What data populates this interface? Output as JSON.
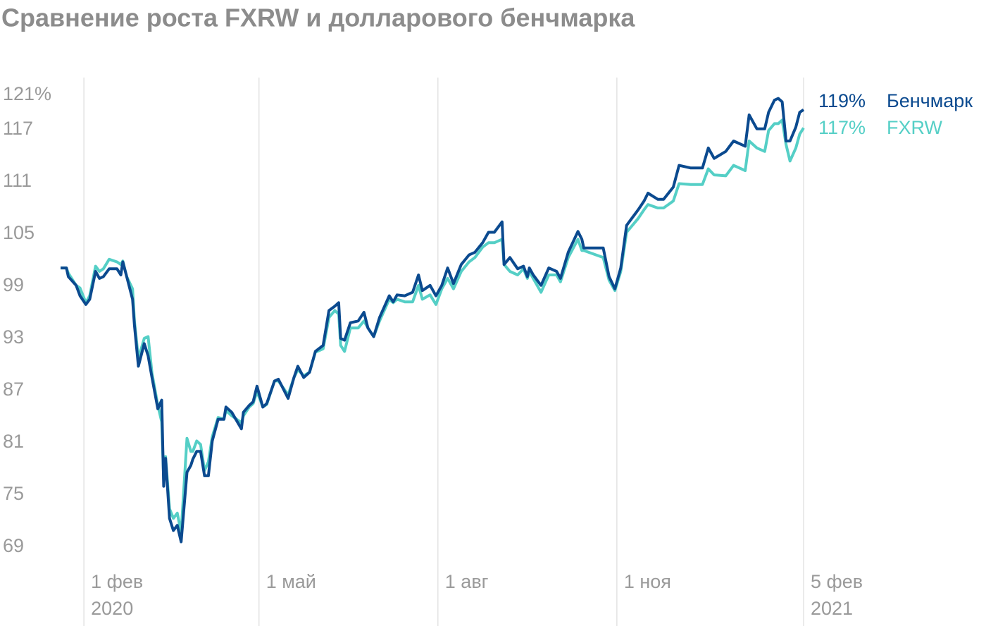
{
  "chart_data": {
    "type": "line",
    "title": "Сравнение роста FXRW и долларового бенчмарка",
    "x": [
      -12,
      -9,
      -8,
      -4,
      -2,
      1,
      3,
      6,
      8,
      10,
      13,
      17,
      19,
      20,
      22,
      25,
      26,
      28,
      31,
      33,
      35,
      38,
      40,
      41,
      42,
      44,
      46,
      48,
      50,
      53,
      55,
      56,
      58,
      60,
      62,
      64,
      66,
      69,
      72,
      73,
      76,
      81,
      82,
      85,
      87,
      89,
      92,
      94,
      98,
      100,
      105,
      108,
      110,
      113,
      116,
      119,
      123,
      126,
      129,
      131,
      132,
      134,
      137,
      141,
      144,
      146,
      149,
      152,
      157,
      159,
      161,
      165,
      169,
      172,
      174,
      178,
      181,
      184,
      187,
      190,
      194,
      198,
      201,
      205,
      208,
      211,
      215,
      216,
      219,
      223,
      226,
      228,
      229,
      231,
      235,
      239,
      243,
      245,
      249,
      254,
      256,
      257,
      267,
      270,
      273,
      276,
      279,
      285,
      288,
      290,
      295,
      298,
      303,
      306,
      312,
      318,
      321,
      324,
      330,
      334,
      340,
      342,
      346,
      350,
      352,
      355,
      357,
      359,
      361,
      363,
      366,
      368,
      370
    ],
    "series": [
      {
        "name": "Бенчмарк",
        "color": "#0b4a8f",
        "end_value_label": "119%",
        "values": [
          101.1,
          101.1,
          100.1,
          99.1,
          97.9,
          96.9,
          97.5,
          100.7,
          99.9,
          100.1,
          101.0,
          101.0,
          100.3,
          101.8,
          100.1,
          97.5,
          94.5,
          89.8,
          92.4,
          91.0,
          88.5,
          84.9,
          85.9,
          76.0,
          79.2,
          72.3,
          70.9,
          71.5,
          69.6,
          77.6,
          78.4,
          79.1,
          80.0,
          80.0,
          77.2,
          77.2,
          81.2,
          83.7,
          83.7,
          85.1,
          84.5,
          82.6,
          84.5,
          85.3,
          85.7,
          87.5,
          85.1,
          85.5,
          88.1,
          88.3,
          86.1,
          88.5,
          89.8,
          88.5,
          89.1,
          91.5,
          92.2,
          96.2,
          96.7,
          97.1,
          93.0,
          92.8,
          94.8,
          95.0,
          96.0,
          94.2,
          93.2,
          95.4,
          97.9,
          97.2,
          98.0,
          97.9,
          98.3,
          100.3,
          98.5,
          99.1,
          97.9,
          99.1,
          101.1,
          99.3,
          101.5,
          102.6,
          102.9,
          104.0,
          105.2,
          105.2,
          106.4,
          101.5,
          102.3,
          101.0,
          101.3,
          100.1,
          101.1,
          100.3,
          99.1,
          101.1,
          100.7,
          99.9,
          102.9,
          105.3,
          104.4,
          103.4,
          103.4,
          100.1,
          98.7,
          101.1,
          106.0,
          107.8,
          108.8,
          109.7,
          109.0,
          109.0,
          110.4,
          112.9,
          112.6,
          112.6,
          114.9,
          113.7,
          114.5,
          115.7,
          115.1,
          118.7,
          117.1,
          117.1,
          119.0,
          120.4,
          120.6,
          120.2,
          115.7,
          115.7,
          117.3,
          119.0,
          119.3
        ]
      },
      {
        "name": "FXRW",
        "color": "#55cfc6",
        "end_value_label": "117%",
        "values": [
          101.1,
          101.1,
          100.5,
          99.1,
          98.8,
          97.1,
          97.9,
          101.3,
          100.7,
          101.0,
          102.1,
          101.8,
          101.5,
          101.9,
          100.1,
          98.7,
          95.0,
          90.7,
          93.0,
          93.2,
          89.0,
          85.3,
          83.4,
          76.8,
          79.4,
          73.4,
          72.3,
          72.9,
          70.7,
          81.5,
          80.0,
          80.0,
          81.2,
          80.8,
          77.8,
          78.8,
          81.7,
          83.9,
          83.7,
          84.7,
          84.1,
          83.3,
          84.1,
          85.1,
          85.5,
          86.9,
          85.1,
          85.4,
          88.1,
          88.1,
          86.5,
          88.5,
          89.4,
          88.7,
          89.1,
          91.4,
          91.8,
          95.4,
          96.2,
          95.8,
          92.2,
          91.5,
          94.2,
          94.2,
          95.0,
          94.2,
          93.2,
          95.0,
          97.5,
          97.1,
          97.5,
          97.2,
          97.2,
          99.1,
          97.5,
          98.0,
          96.9,
          98.7,
          99.9,
          98.7,
          100.7,
          101.8,
          102.3,
          103.5,
          104.0,
          104.0,
          104.4,
          101.5,
          100.7,
          100.3,
          101.0,
          99.9,
          100.7,
          99.9,
          98.3,
          100.3,
          100.3,
          99.5,
          102.3,
          104.4,
          103.1,
          103.1,
          102.3,
          99.7,
          98.5,
          100.7,
          105.2,
          106.8,
          107.8,
          108.4,
          108.0,
          108.0,
          108.8,
          110.8,
          110.7,
          110.7,
          112.5,
          111.8,
          111.7,
          112.9,
          112.3,
          115.7,
          114.9,
          114.5,
          116.9,
          117.7,
          117.7,
          118.1,
          115.3,
          113.4,
          114.9,
          116.5,
          117.2
        ]
      }
    ],
    "xlim": [
      -12,
      370
    ],
    "xticks": [
      {
        "value": 0,
        "label": "1 фев"
      },
      {
        "value": 90,
        "label": "1 май"
      },
      {
        "value": 182,
        "label": "1 авг"
      },
      {
        "value": 274,
        "label": "1 ноя"
      },
      {
        "value": 370,
        "label": "5 фев"
      }
    ],
    "x_year_labels": [
      {
        "value": 0,
        "label": "2020"
      },
      {
        "value": 370,
        "label": "2021"
      }
    ],
    "ylim": [
      69,
      123
    ],
    "yticks": [
      {
        "value": 121,
        "label": "121%"
      },
      117,
      111,
      105,
      99,
      93,
      87,
      81,
      75,
      69
    ],
    "grid": true
  }
}
